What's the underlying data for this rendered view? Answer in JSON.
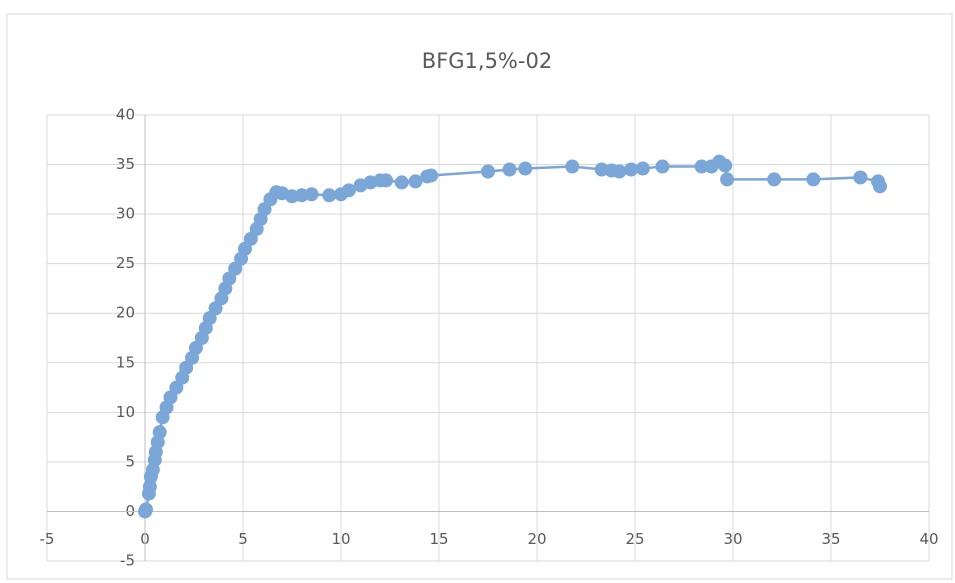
{
  "chart_data": {
    "type": "scatter",
    "title": "BFG1,5%-02",
    "color": "#7aa6d8",
    "grid": true,
    "x": [
      0,
      0.05,
      0.2,
      0.25,
      0.3,
      0.4,
      0.5,
      0.55,
      0.65,
      0.75,
      0.9,
      1.1,
      1.3,
      1.6,
      1.9,
      2.1,
      2.4,
      2.6,
      2.9,
      3.1,
      3.3,
      3.6,
      3.9,
      4.1,
      4.3,
      4.6,
      4.9,
      5.1,
      5.4,
      5.7,
      5.9,
      6.1,
      6.4,
      6.7,
      7.0,
      7.5,
      8.0,
      8.5,
      9.4,
      10.0,
      10.4,
      11.0,
      11.5,
      12.0,
      12.3,
      13.1,
      13.8,
      14.4,
      14.6,
      17.5,
      18.6,
      19.4,
      21.8,
      23.3,
      23.8,
      24.2,
      24.8,
      25.4,
      26.4,
      28.4,
      28.9,
      29.3,
      29.6,
      29.7,
      32.1,
      34.1,
      36.5,
      37.4,
      37.5
    ],
    "values": [
      0,
      0.2,
      1.8,
      2.5,
      3.5,
      4.2,
      5.2,
      6,
      7,
      8,
      9.5,
      10.5,
      11.5,
      12.5,
      13.5,
      14.5,
      15.5,
      16.5,
      17.5,
      18.5,
      19.5,
      20.5,
      21.5,
      22.5,
      23.5,
      24.5,
      25.5,
      26.5,
      27.5,
      28.5,
      29.5,
      30.5,
      31.5,
      32.2,
      32.1,
      31.8,
      31.9,
      32.0,
      31.9,
      32.0,
      32.4,
      32.9,
      33.2,
      33.4,
      33.4,
      33.2,
      33.3,
      33.8,
      33.9,
      34.3,
      34.5,
      34.6,
      34.8,
      34.5,
      34.4,
      34.3,
      34.5,
      34.6,
      34.8,
      34.8,
      34.8,
      35.3,
      34.9,
      33.5,
      33.5,
      33.5,
      33.7,
      33.3,
      32.8
    ],
    "xlim": [
      -5,
      40
    ],
    "xticks": [
      -5,
      0,
      5,
      10,
      15,
      20,
      25,
      30,
      35,
      40
    ],
    "ylim": [
      -5,
      40
    ],
    "yticks": [
      -5,
      0,
      5,
      10,
      15,
      20,
      25,
      30,
      35,
      40
    ]
  }
}
